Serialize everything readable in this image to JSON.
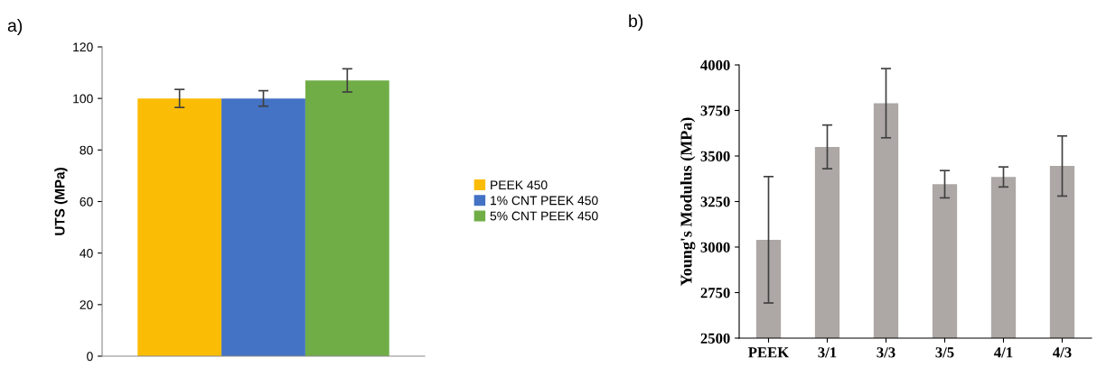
{
  "chart_data": [
    {
      "type": "bar",
      "annotations": [
        "a)"
      ],
      "ylabel": "UTS (MPa)",
      "categories": [
        null
      ],
      "ylim": [
        0,
        120
      ],
      "yticks": [
        0,
        20,
        40,
        60,
        80,
        100,
        120
      ],
      "legend": "right",
      "grid": false,
      "series": [
        {
          "name": "PEEK 450",
          "color": "#fbbc05",
          "values": [
            100
          ],
          "errors": [
            3.5
          ]
        },
        {
          "name": "1% CNT PEEK 450",
          "color": "#4472c4",
          "values": [
            100
          ],
          "errors": [
            3
          ]
        },
        {
          "name": "5% CNT PEEK 450",
          "color": "#70ad47",
          "values": [
            107
          ],
          "errors": [
            4.5
          ]
        }
      ]
    },
    {
      "type": "bar",
      "annotations": [
        "b)"
      ],
      "ylabel": "Young's Modulus (MPa)",
      "categories": [
        "PEEK",
        "3/1",
        "3/3",
        "3/5",
        "4/1",
        "4/3"
      ],
      "ylim": [
        2500,
        4000
      ],
      "yticks": [
        2500,
        2750,
        3000,
        3250,
        3500,
        3750,
        4000
      ],
      "grid": false,
      "series": [
        {
          "color": "#ada7a5",
          "values": [
            3040,
            3550,
            3790,
            3345,
            3385,
            3445
          ],
          "errors": [
            347,
            120,
            190,
            75,
            55,
            165
          ]
        }
      ]
    }
  ]
}
